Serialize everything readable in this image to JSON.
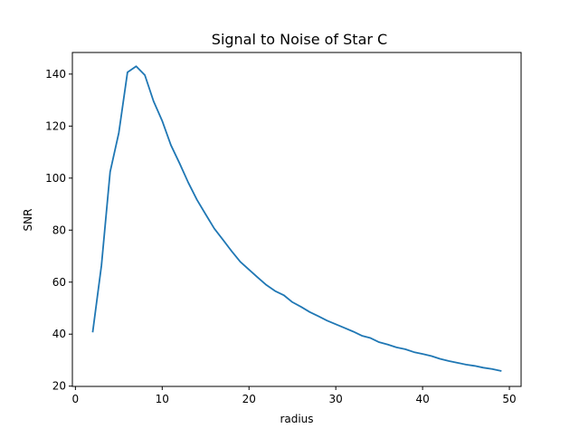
{
  "chart_data": {
    "type": "line",
    "title": "Signal to Noise of Star C",
    "xlabel": "radius",
    "ylabel": "SNR",
    "xlim": [
      -0.35,
      51.35
    ],
    "ylim": [
      19.9,
      148.3
    ],
    "xticks": [
      0,
      10,
      20,
      30,
      40,
      50
    ],
    "yticks": [
      20,
      40,
      60,
      80,
      100,
      120,
      140
    ],
    "grid": false,
    "line_color": "#1f77b4",
    "series": [
      {
        "x": [
          2,
          3,
          4,
          5,
          6,
          7,
          8,
          9,
          10,
          11,
          12,
          13,
          14,
          15,
          16,
          17,
          18,
          19,
          20,
          21,
          22,
          23,
          24,
          25,
          26,
          27,
          28,
          29,
          30,
          31,
          32,
          33,
          34,
          35,
          36,
          37,
          38,
          39,
          40,
          41,
          42,
          43,
          44,
          45,
          46,
          47,
          48,
          49
        ],
        "values": [
          41.0,
          66.4,
          102.4,
          117.4,
          140.7,
          143.0,
          139.6,
          129.6,
          122.0,
          112.7,
          105.7,
          98.3,
          91.7,
          86.1,
          80.6,
          76.3,
          71.9,
          67.8,
          64.8,
          61.8,
          58.9,
          56.6,
          55.0,
          52.3,
          50.5,
          48.5,
          46.9,
          45.2,
          43.8,
          42.4,
          41.0,
          39.4,
          38.5,
          36.9,
          36.0,
          34.9,
          34.2,
          33.1,
          32.4,
          31.6,
          30.5,
          29.7,
          29.0,
          28.3,
          27.8,
          27.1,
          26.6,
          25.9
        ]
      }
    ]
  }
}
